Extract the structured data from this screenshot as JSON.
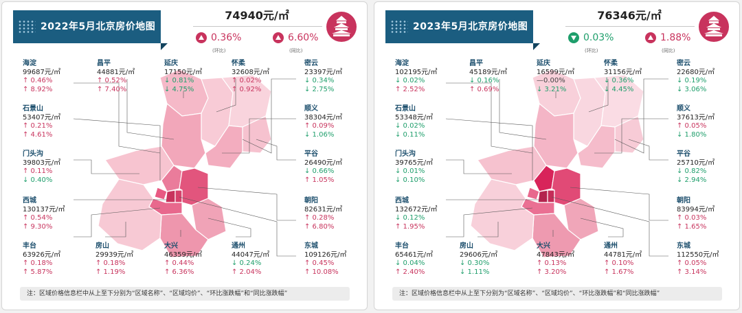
{
  "panels": [
    {
      "title": "2022年5月北京房价地图",
      "average_price": "74940元/㎡",
      "mom": {
        "value": "0.36%",
        "dir": "up",
        "label": "(环比)"
      },
      "yoy": {
        "value": "6.60%",
        "dir": "up",
        "label": "(同比)"
      },
      "districts": [
        {
          "name": "海淀",
          "price": "99687元/㎡",
          "mom": "↑ 0.46%",
          "mom_dir": "up",
          "yoy": "↑ 8.92%",
          "yoy_dir": "up"
        },
        {
          "name": "昌平",
          "price": "44881元/㎡",
          "mom": "↑ 0.52%",
          "mom_dir": "up",
          "yoy": "↑ 7.40%",
          "yoy_dir": "up"
        },
        {
          "name": "延庆",
          "price": "17150元/㎡",
          "mom": "↓ 0.81%",
          "mom_dir": "down",
          "yoy": "↓ 4.75%",
          "yoy_dir": "down"
        },
        {
          "name": "怀柔",
          "price": "32608元/㎡",
          "mom": "↑ 0.02%",
          "mom_dir": "up",
          "yoy": "↑ 0.92%",
          "yoy_dir": "up"
        },
        {
          "name": "密云",
          "price": "23397元/㎡",
          "mom": "↓ 0.34%",
          "mom_dir": "down",
          "yoy": "↓ 2.75%",
          "yoy_dir": "down"
        },
        {
          "name": "石景山",
          "price": "53407元/㎡",
          "mom": "↑ 0.21%",
          "mom_dir": "up",
          "yoy": "↑ 4.61%",
          "yoy_dir": "up"
        },
        {
          "name": "顺义",
          "price": "38304元/㎡",
          "mom": "↑ 0.09%",
          "mom_dir": "up",
          "yoy": "↓ 1.06%",
          "yoy_dir": "down"
        },
        {
          "name": "门头沟",
          "price": "39803元/㎡",
          "mom": "↑ 0.11%",
          "mom_dir": "up",
          "yoy": "↓ 0.40%",
          "yoy_dir": "down"
        },
        {
          "name": "平谷",
          "price": "26490元/㎡",
          "mom": "↓ 0.66%",
          "mom_dir": "down",
          "yoy": "↑ 1.05%",
          "yoy_dir": "up"
        },
        {
          "name": "西城",
          "price": "130137元/㎡",
          "mom": "↑ 0.54%",
          "mom_dir": "up",
          "yoy": "↑ 9.30%",
          "yoy_dir": "up"
        },
        {
          "name": "朝阳",
          "price": "82631元/㎡",
          "mom": "↑ 0.28%",
          "mom_dir": "up",
          "yoy": "↑ 6.80%",
          "yoy_dir": "up"
        },
        {
          "name": "丰台",
          "price": "63926元/㎡",
          "mom": "↑ 0.18%",
          "mom_dir": "up",
          "yoy": "↑ 5.87%",
          "yoy_dir": "up"
        },
        {
          "name": "房山",
          "price": "29939元/㎡",
          "mom": "↑ 0.18%",
          "mom_dir": "up",
          "yoy": "↑ 1.19%",
          "yoy_dir": "up"
        },
        {
          "name": "大兴",
          "price": "46359元/㎡",
          "mom": "↑ 0.44%",
          "mom_dir": "up",
          "yoy": "↑ 6.36%",
          "yoy_dir": "up"
        },
        {
          "name": "通州",
          "price": "44047元/㎡",
          "mom": "↓ 0.24%",
          "mom_dir": "down",
          "yoy": "↑ 2.04%",
          "yoy_dir": "up"
        },
        {
          "name": "东城",
          "price": "109126元/㎡",
          "mom": "↑ 0.45%",
          "mom_dir": "up",
          "yoy": "↑ 10.08%",
          "yoy_dir": "up"
        }
      ],
      "note": "注：区域价格信息栏中从上至下分别为“区域名称”、“区域均价”、“环比涨跌幅”和“同比涨跌幅”"
    },
    {
      "title": "2023年5月北京房价地图",
      "average_price": "76346元/㎡",
      "mom": {
        "value": "0.03%",
        "dir": "down",
        "label": "(环比)"
      },
      "yoy": {
        "value": "1.88%",
        "dir": "up",
        "label": "(同比)"
      },
      "districts": [
        {
          "name": "海淀",
          "price": "102195元/㎡",
          "mom": "↓ 0.02%",
          "mom_dir": "down",
          "yoy": "↑ 2.52%",
          "yoy_dir": "up"
        },
        {
          "name": "昌平",
          "price": "45189元/㎡",
          "mom": "↓ 0.16%",
          "mom_dir": "down",
          "yoy": "↑ 0.69%",
          "yoy_dir": "up"
        },
        {
          "name": "延庆",
          "price": "16599元/㎡",
          "mom": "—0.00%",
          "mom_dir": "flat",
          "yoy": "↓ 3.21%",
          "yoy_dir": "down"
        },
        {
          "name": "怀柔",
          "price": "31156元/㎡",
          "mom": "↓ 0.36%",
          "mom_dir": "down",
          "yoy": "↓ 4.45%",
          "yoy_dir": "down"
        },
        {
          "name": "密云",
          "price": "22680元/㎡",
          "mom": "↓ 0.19%",
          "mom_dir": "down",
          "yoy": "↓ 3.06%",
          "yoy_dir": "down"
        },
        {
          "name": "石景山",
          "price": "53348元/㎡",
          "mom": "↓ 0.02%",
          "mom_dir": "down",
          "yoy": "↓ 0.11%",
          "yoy_dir": "down"
        },
        {
          "name": "顺义",
          "price": "37613元/㎡",
          "mom": "↑ 0.05%",
          "mom_dir": "up",
          "yoy": "↓ 1.80%",
          "yoy_dir": "down"
        },
        {
          "name": "门头沟",
          "price": "39765元/㎡",
          "mom": "↓ 0.01%",
          "mom_dir": "down",
          "yoy": "↓ 0.10%",
          "yoy_dir": "down"
        },
        {
          "name": "平谷",
          "price": "25710元/㎡",
          "mom": "↓ 0.82%",
          "mom_dir": "down",
          "yoy": "↓ 2.94%",
          "yoy_dir": "down"
        },
        {
          "name": "西城",
          "price": "132672元/㎡",
          "mom": "↓ 0.12%",
          "mom_dir": "down",
          "yoy": "↑ 1.95%",
          "yoy_dir": "up"
        },
        {
          "name": "朝阳",
          "price": "83994元/㎡",
          "mom": "↑ 0.03%",
          "mom_dir": "up",
          "yoy": "↑ 1.65%",
          "yoy_dir": "up"
        },
        {
          "name": "丰台",
          "price": "65461元/㎡",
          "mom": "↓ 0.04%",
          "mom_dir": "down",
          "yoy": "↑ 2.40%",
          "yoy_dir": "up"
        },
        {
          "name": "房山",
          "price": "29606元/㎡",
          "mom": "↓ 0.30%",
          "mom_dir": "down",
          "yoy": "↓ 1.11%",
          "yoy_dir": "down"
        },
        {
          "name": "大兴",
          "price": "47843元/㎡",
          "mom": "↑ 0.13%",
          "mom_dir": "up",
          "yoy": "↑ 3.20%",
          "yoy_dir": "up"
        },
        {
          "name": "通州",
          "price": "44781元/㎡",
          "mom": "↑ 0.10%",
          "mom_dir": "up",
          "yoy": "↑ 1.67%",
          "yoy_dir": "up"
        },
        {
          "name": "东城",
          "price": "112550元/㎡",
          "mom": "↑ 0.05%",
          "mom_dir": "up",
          "yoy": "↑ 3.14%",
          "yoy_dir": "up"
        }
      ],
      "note": "注：区域价格信息栏中从上至下分别为“区域名称”、“区域均价”、“环比涨跌幅”和“同比涨跌幅”"
    }
  ],
  "colors": {
    "brand_blue": "#1b5d80",
    "up_red": "#c8335d",
    "down_green": "#1e9e6b"
  }
}
